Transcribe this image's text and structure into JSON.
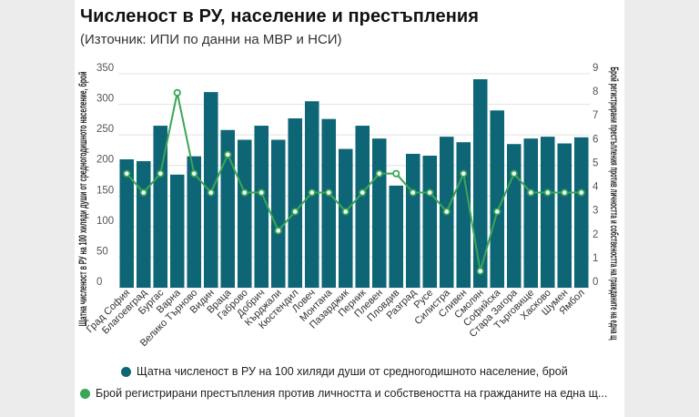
{
  "title": "Численост в РУ, население и престъпления",
  "subtitle": "(Източник: ИПИ по данни на МВР и НСИ)",
  "colors": {
    "bars": "#0d6575",
    "line": "#3aa655",
    "marker_fill": "#ffffff",
    "grid": "#e3e3e3",
    "axis_text": "#555555"
  },
  "chart_data": {
    "type": "bar",
    "categories": [
      "Град София",
      "Благоевград",
      "Бургас",
      "Варна",
      "Велико Търново",
      "Видин",
      "Враца",
      "Габрово",
      "Добрич",
      "Кърджали",
      "Кюстендил",
      "Ловеч",
      "Монтана",
      "Пазарджик",
      "Перник",
      "Плевен",
      "Пловдив",
      "Разград",
      "Русе",
      "Силистра",
      "Сливен",
      "Смолян",
      "Софийска",
      "Стара Загора",
      "Търговище",
      "Хасково",
      "Шумен",
      "Ямбол"
    ],
    "series": [
      {
        "name": "Щатна численост в РУ на 100 хиляди души от средногодишното население, брой",
        "type": "bar",
        "axis": "left",
        "values": [
          210,
          207,
          265,
          185,
          215,
          320,
          258,
          242,
          265,
          242,
          277,
          305,
          276,
          227,
          265,
          244,
          167,
          219,
          216,
          247,
          238,
          341,
          290,
          235,
          244,
          247,
          236,
          246
        ]
      },
      {
        "name": "Брой регистрирани престъпления против личността и собствеността на гражданите на една щ...",
        "type": "line",
        "axis": "right",
        "values": [
          4.8,
          4.0,
          4.8,
          8.2,
          4.8,
          4.0,
          5.6,
          4.0,
          4.0,
          2.4,
          3.2,
          4.0,
          4.0,
          3.2,
          4.0,
          4.8,
          4.8,
          4.0,
          4.0,
          3.2,
          4.8,
          0.7,
          3.2,
          4.8,
          4.0,
          4.0,
          4.0,
          4.0
        ]
      }
    ],
    "left_axis": {
      "label": "Щатна численост в РУ на 100 хиляди души от средногодишното население, брой",
      "min": 0,
      "max": 350,
      "ticks": [
        "0",
        "50",
        "100",
        "150",
        "200",
        "250",
        "300",
        "350"
      ]
    },
    "right_axis": {
      "label": "Брой регистрирани престъпления против личността и собствеността на гражданите на една щ",
      "min": 0,
      "max": 9,
      "ticks": [
        "0",
        "1",
        "2",
        "3",
        "4",
        "5",
        "6",
        "7",
        "8",
        "9"
      ]
    }
  }
}
